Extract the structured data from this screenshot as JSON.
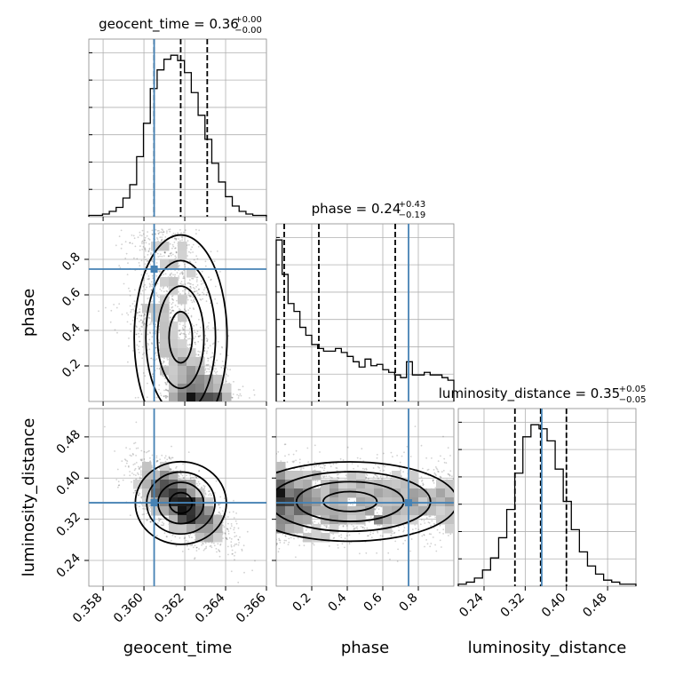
{
  "chart_data": {
    "type": "corner",
    "parameters": [
      "geocent_time",
      "phase",
      "luminosity_distance"
    ],
    "axis_labels": {
      "x": [
        "geocent_time",
        "phase",
        "luminosity_distance"
      ],
      "y": [
        "",
        "phase",
        "luminosity_distance"
      ]
    },
    "ranges": {
      "geocent_time": [
        0.3573,
        0.366
      ],
      "phase": [
        0.0,
        1.0
      ],
      "luminosity_distance": [
        0.19,
        0.535
      ]
    },
    "ticks": {
      "geocent_time": [
        0.358,
        0.36,
        0.362,
        0.364,
        0.366
      ],
      "phase": [
        0.2,
        0.4,
        0.6,
        0.8
      ],
      "luminosity_distance": [
        0.24,
        0.32,
        0.4,
        0.48
      ]
    },
    "tick_labels": {
      "geocent_time": [
        "0.358",
        "0.360",
        "0.362",
        "0.364",
        "0.366"
      ],
      "phase": [
        "0.2",
        "0.4",
        "0.6",
        "0.8"
      ],
      "luminosity_distance": [
        "0.24",
        "0.32",
        "0.40",
        "0.48"
      ]
    },
    "titles": [
      {
        "param": "geocent_time",
        "text": "geocent_time = 0.36",
        "plus": "+0.00",
        "minus": "−0.00"
      },
      {
        "param": "phase",
        "text": "phase = 0.24",
        "plus": "+0.43",
        "minus": "−0.19"
      },
      {
        "param": "luminosity_distance",
        "text": "luminosity_distance = 0.35",
        "plus": "+0.05",
        "minus": "−0.05"
      }
    ],
    "truths": {
      "geocent_time": 0.3605,
      "phase": 0.745,
      "luminosity_distance": 0.352
    },
    "quantiles": {
      "geocent_time": [
        0.3605,
        0.3618,
        0.3631
      ],
      "phase": [
        0.045,
        0.24,
        0.67
      ],
      "luminosity_distance": [
        0.3,
        0.35,
        0.4
      ]
    },
    "histograms": {
      "geocent_time": {
        "edges_range": [
          0.3573,
          0.366
        ],
        "counts": [
          1,
          1,
          2,
          4,
          7,
          14,
          24,
          45,
          70,
          96,
          110,
          118,
          121,
          117,
          108,
          93,
          76,
          58,
          40,
          26,
          15,
          8,
          4,
          2,
          1,
          1
        ]
      },
      "phase": {
        "edges_range": [
          0.0,
          1.0
        ],
        "counts": [
          122,
          96,
          74,
          68,
          56,
          50,
          43,
          40,
          38,
          38,
          40,
          37,
          34,
          30,
          26,
          32,
          27,
          28,
          24,
          22,
          20,
          18,
          30,
          20,
          20,
          22,
          20,
          20,
          18,
          16
        ]
      },
      "luminosity_distance": {
        "edges_range": [
          0.19,
          0.535
        ],
        "counts": [
          1,
          2,
          4,
          8,
          14,
          24,
          38,
          56,
          74,
          80,
          78,
          72,
          58,
          42,
          28,
          17,
          10,
          6,
          3,
          2,
          1,
          1
        ]
      }
    },
    "grid": true
  },
  "colors": {
    "truth": "#4682b4",
    "ink": "#000000",
    "grid": "#b0b0b0"
  }
}
